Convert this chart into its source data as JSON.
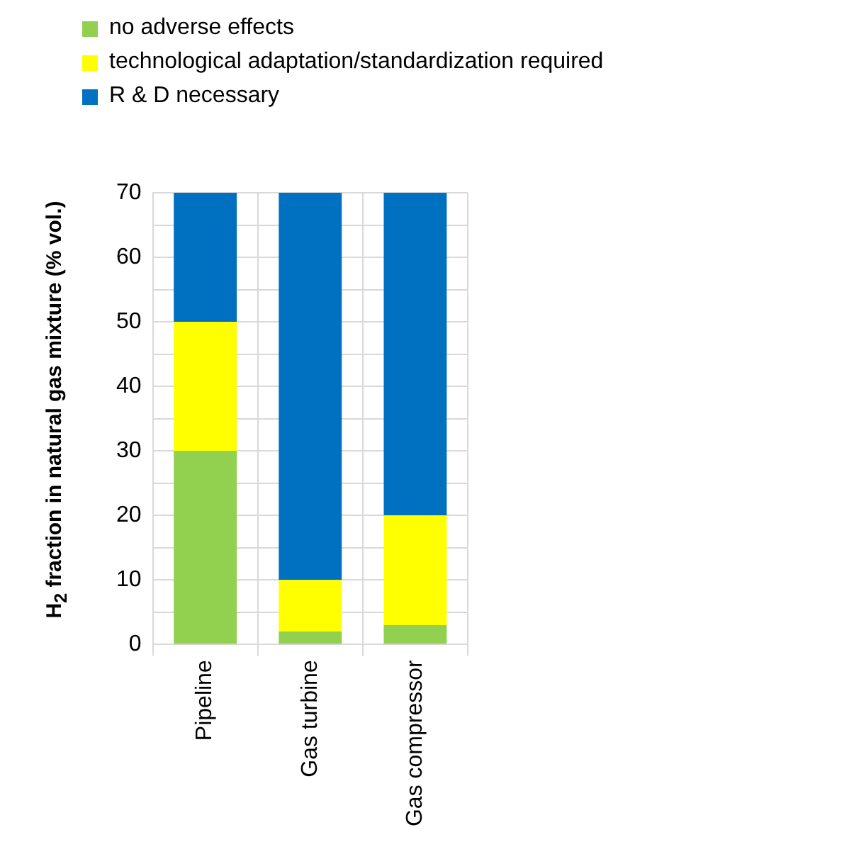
{
  "chart_data": {
    "type": "bar",
    "stacked": true,
    "categories": [
      "Pipeline",
      "Gas turbine",
      "Gas compressor"
    ],
    "series": [
      {
        "name": "no adverse effects",
        "color": "#92d050",
        "values": [
          30,
          2,
          3
        ]
      },
      {
        "name": "technological adaptation/standardization required",
        "color": "#ffff00",
        "values": [
          20,
          8,
          17
        ]
      },
      {
        "name": "R & D necessary",
        "color": "#0070c0",
        "values": [
          20,
          60,
          50
        ]
      }
    ],
    "ylabel": "H$_{2}$ fraction in natural gas mixture (% vol.)",
    "ylim": [
      0,
      70
    ],
    "yticks": [
      0,
      {
        "value": 5,
        "label": null
      },
      10,
      {
        "value": 15,
        "label": null
      },
      20,
      {
        "value": 25,
        "label": null
      },
      30,
      {
        "value": 35,
        "label": null
      },
      40,
      {
        "value": 45,
        "label": null
      },
      50,
      {
        "value": 55,
        "label": null
      },
      60,
      {
        "value": 65,
        "label": null
      },
      70
    ],
    "grid": true,
    "legend": "top"
  }
}
